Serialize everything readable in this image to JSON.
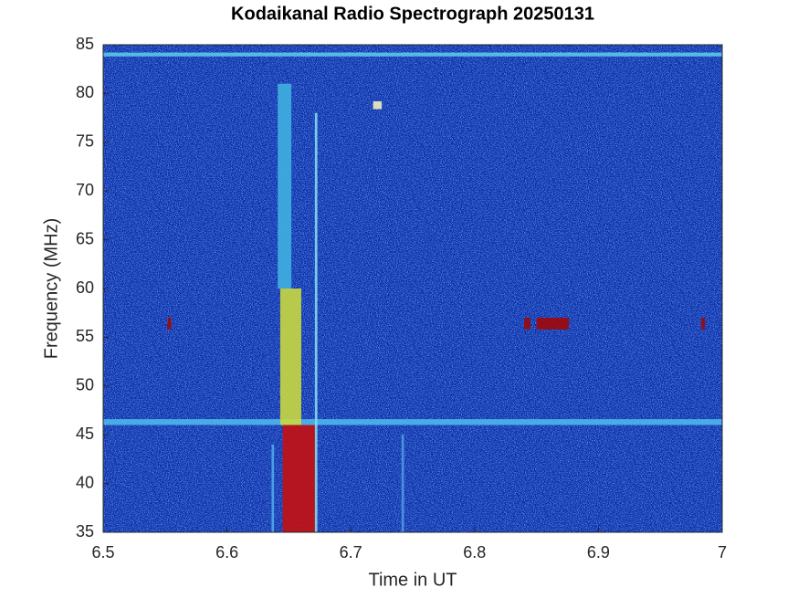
{
  "chart_data": {
    "type": "spectrogram",
    "title": "Kodaikanal Radio Spectrograph  20250131",
    "xlabel": "Time in UT",
    "ylabel": "Frequency (MHz)",
    "xlim": [
      6.5,
      7
    ],
    "ylim": [
      35,
      85
    ],
    "xticks": [
      6.5,
      6.6,
      6.7,
      6.8,
      6.9,
      7
    ],
    "yticks": [
      35,
      40,
      45,
      50,
      55,
      60,
      65,
      70,
      75,
      80,
      85
    ],
    "background": "#0c2aa6",
    "features": [
      {
        "x": [
          6.5,
          7
        ],
        "y": [
          83.8,
          84.2
        ],
        "color": "#5cc8e8"
      },
      {
        "x": [
          6.5,
          7
        ],
        "y": [
          46.0,
          46.6
        ],
        "color": "#4fb6ea"
      },
      {
        "x": [
          6.641,
          6.652
        ],
        "y": [
          60,
          81
        ],
        "color": "#3fb0e0"
      },
      {
        "x": [
          6.643,
          6.66
        ],
        "y": [
          46,
          60
        ],
        "color": "#c8d840"
      },
      {
        "x": [
          6.645,
          6.672
        ],
        "y": [
          35,
          46
        ],
        "color": "#c41010"
      },
      {
        "x": [
          6.671,
          6.673
        ],
        "y": [
          35,
          78
        ],
        "color": "#7fd8f0"
      },
      {
        "x": [
          6.636,
          6.638
        ],
        "y": [
          35,
          44
        ],
        "color": "#4fa8e8"
      },
      {
        "x": [
          6.741,
          6.743
        ],
        "y": [
          35,
          45
        ],
        "color": "#4f98e0"
      },
      {
        "x": [
          6.552,
          6.555
        ],
        "y": [
          55.8,
          57
        ],
        "color": "#9a0a0a"
      },
      {
        "x": [
          6.84,
          6.845
        ],
        "y": [
          55.8,
          57
        ],
        "color": "#9a0a0a"
      },
      {
        "x": [
          6.85,
          6.876
        ],
        "y": [
          55.8,
          57
        ],
        "color": "#a00808"
      },
      {
        "x": [
          6.983,
          6.986
        ],
        "y": [
          55.8,
          57
        ],
        "color": "#9a0a0a"
      },
      {
        "x": [
          6.718,
          6.725
        ],
        "y": [
          78.4,
          79.2
        ],
        "color": "#f0f0c0"
      }
    ]
  }
}
